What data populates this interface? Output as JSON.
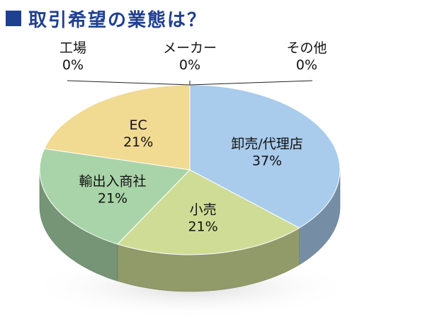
{
  "title": "取引希望の業態は？",
  "chart_data": {
    "type": "pie",
    "title": "取引希望の業態は？",
    "slices": [
      {
        "label": "卸売/代理店",
        "value": 37,
        "display": "37%",
        "color": "#a9cbec"
      },
      {
        "label": "小売",
        "value": 21,
        "display": "21%",
        "color": "#cfdc96"
      },
      {
        "label": "輸出入商社",
        "value": 21,
        "display": "21%",
        "color": "#a9d4a9"
      },
      {
        "label": "EC",
        "value": 21,
        "display": "21%",
        "color": "#f1da92"
      },
      {
        "label": "工場",
        "value": 0,
        "display": "0%",
        "color": "#cccccc"
      },
      {
        "label": "メーカー",
        "value": 0,
        "display": "0%",
        "color": "#cccccc"
      },
      {
        "label": "その他",
        "value": 0,
        "display": "0%",
        "color": "#cccccc"
      }
    ],
    "legend": "none"
  }
}
